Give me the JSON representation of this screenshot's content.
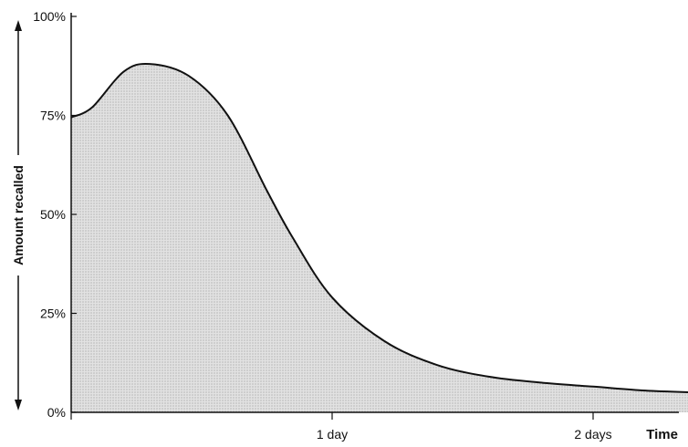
{
  "chart_data": {
    "type": "area",
    "title": "",
    "xlabel": "Time",
    "ylabel": "Amount recalled",
    "y_unit": "%",
    "ylim": [
      0,
      100
    ],
    "xlim": [
      0,
      2.45
    ],
    "y_ticks": [
      {
        "value": 0,
        "label": "0%"
      },
      {
        "value": 25,
        "label": "25%"
      },
      {
        "value": 50,
        "label": "50%"
      },
      {
        "value": 75,
        "label": "75%"
      },
      {
        "value": 100,
        "label": "100%"
      }
    ],
    "x_ticks": [
      {
        "value": 0,
        "label": ""
      },
      {
        "value": 1,
        "label": "1 day"
      },
      {
        "value": 2,
        "label": "2 days"
      }
    ],
    "grid": false,
    "series": [
      {
        "x": [
          0,
          0.08,
          0.2,
          0.3,
          0.45,
          0.6,
          0.75,
          0.85,
          1.0,
          1.2,
          1.4,
          1.6,
          1.8,
          2.0,
          2.2,
          2.4
        ],
        "y": [
          74.5,
          77,
          86,
          88,
          85,
          75,
          56,
          44,
          29,
          18,
          12,
          9,
          7.5,
          6.5,
          5.5,
          5
        ]
      }
    ],
    "colors": {
      "line": "#111111",
      "fill": "#d4d4d4",
      "axis": "#111111"
    }
  }
}
